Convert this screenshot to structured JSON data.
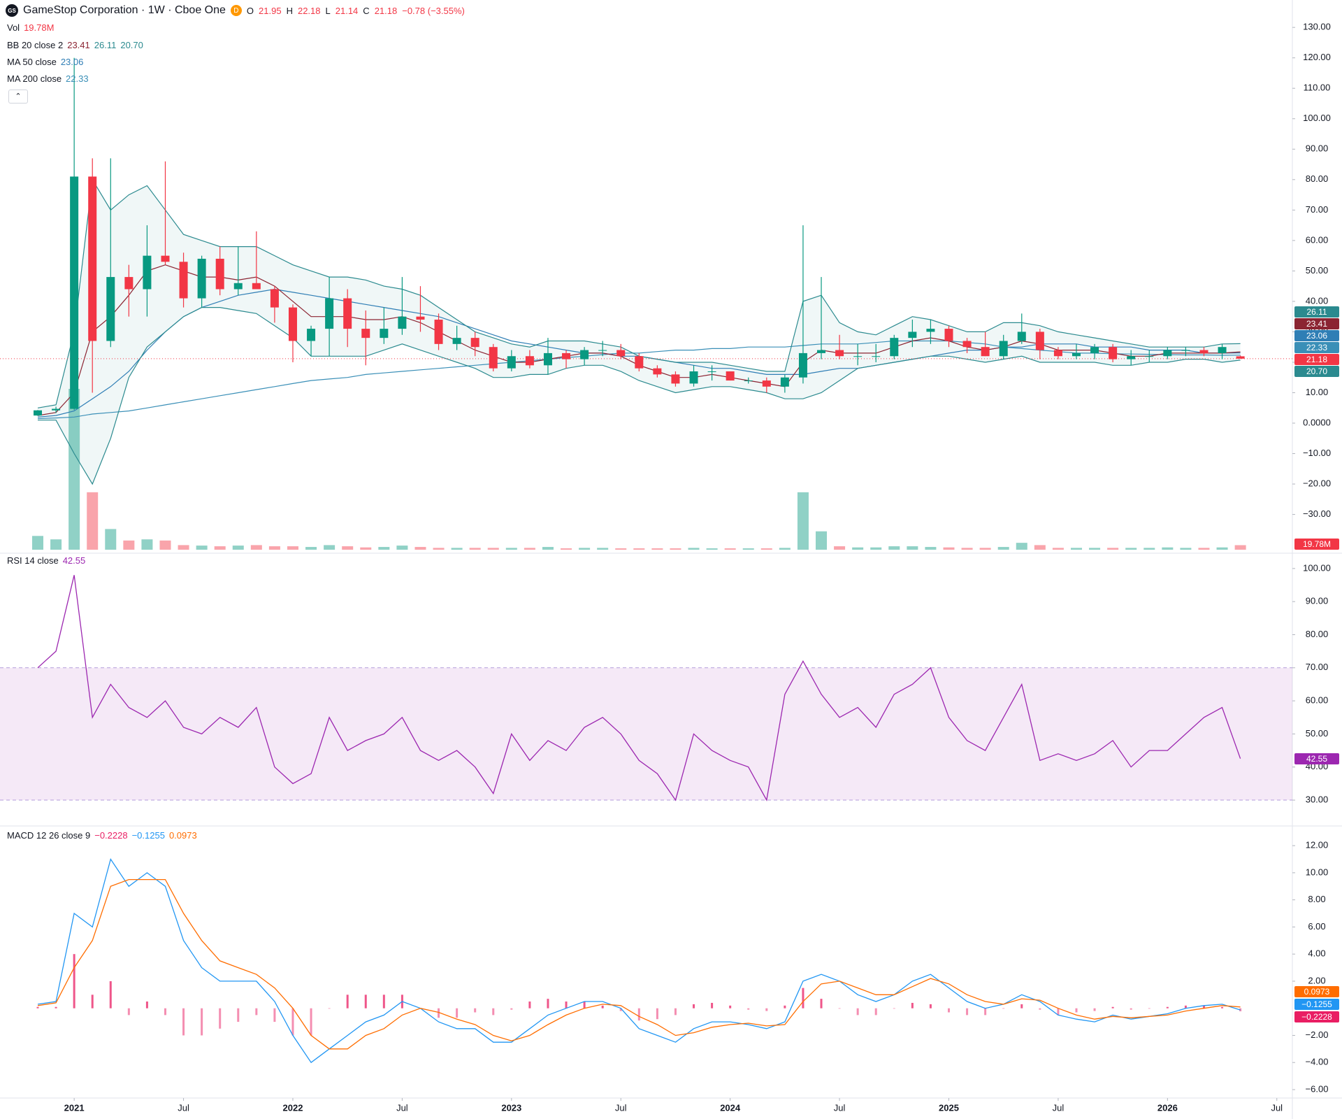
{
  "header": {
    "symbol_title": "GameStop Corporation · 1W · Cboe One",
    "flag": "D",
    "ohlc": [
      {
        "label": "O",
        "value": "21.95"
      },
      {
        "label": "H",
        "value": "22.18"
      },
      {
        "label": "L",
        "value": "21.14"
      },
      {
        "label": "C",
        "value": "21.18"
      }
    ],
    "change": "−0.78 (−3.55%)"
  },
  "legends": {
    "vol": {
      "label": "Vol",
      "value": "19.78M"
    },
    "bb": {
      "label": "BB 20 close 2",
      "values": [
        "23.41",
        "26.11",
        "20.70"
      ]
    },
    "ma50": {
      "label": "MA 50 close",
      "value": "23.06"
    },
    "ma200": {
      "label": "MA 200 close",
      "value": "22.33"
    },
    "rsi": {
      "label": "RSI 14 close",
      "value": "42.55"
    },
    "macd": {
      "label": "MACD 12 26 close 9",
      "values": [
        "−0.2228",
        "−0.1255",
        "0.0973"
      ]
    }
  },
  "chart_data": [
    {
      "type": "candlestick",
      "x": [
        "2020-11",
        "2020-12",
        "2021-01",
        "2021-02",
        "2021-03",
        "2021-04",
        "2021-05",
        "2021-06",
        "2021-07",
        "2021-08",
        "2021-09",
        "2021-10",
        "2021-11",
        "2021-12",
        "2022-01",
        "2022-02",
        "2022-03",
        "2022-04",
        "2022-05",
        "2022-06",
        "2022-07",
        "2022-08",
        "2022-09",
        "2022-10",
        "2022-11",
        "2022-12",
        "2023-01",
        "2023-02",
        "2023-03",
        "2023-04",
        "2023-05",
        "2023-06",
        "2023-07",
        "2023-08",
        "2023-09",
        "2023-10",
        "2023-11",
        "2023-12",
        "2024-01",
        "2024-02",
        "2024-03",
        "2024-04",
        "2024-05",
        "2024-06",
        "2024-07",
        "2024-08",
        "2024-09",
        "2024-10",
        "2024-11",
        "2024-12",
        "2025-01",
        "2025-02",
        "2025-03",
        "2025-04",
        "2025-05",
        "2025-06",
        "2025-07",
        "2025-08",
        "2025-09",
        "2025-10",
        "2025-11",
        "2025-12",
        "2026-01",
        "2026-02",
        "2026-03",
        "2026-04",
        "2026-05"
      ],
      "open": [
        2.5,
        4.2,
        4.7,
        81,
        27,
        48,
        44,
        55,
        53,
        41,
        54,
        44,
        46,
        44,
        38,
        27,
        31,
        41,
        31,
        28,
        31,
        35,
        34,
        26,
        28,
        25,
        18,
        22,
        19,
        23,
        21,
        24,
        24,
        22,
        18,
        16,
        13,
        17,
        17,
        14,
        14,
        12,
        15,
        23,
        24,
        22,
        22,
        22,
        28,
        30,
        31,
        27,
        25,
        22,
        27,
        30,
        24,
        22,
        23,
        25,
        21,
        22,
        22,
        24,
        24,
        23,
        21.95
      ],
      "high": [
        4.3,
        5.4,
        120,
        87,
        87,
        52,
        65,
        86,
        56,
        55,
        58,
        58,
        63,
        45,
        39,
        32,
        48,
        44,
        37,
        38,
        48,
        45,
        36,
        32,
        30,
        26,
        24,
        24,
        28,
        24,
        25,
        27,
        26,
        23,
        19,
        17,
        19,
        19,
        17,
        15,
        15,
        16,
        65,
        48,
        29,
        26,
        26,
        29,
        34,
        34,
        32,
        28,
        30,
        29,
        36,
        31,
        25,
        26,
        26,
        26,
        24,
        24,
        25,
        25,
        25,
        26,
        22.18
      ],
      "low": [
        2.4,
        3.3,
        4.3,
        10,
        25,
        35,
        35,
        52,
        38,
        38,
        42,
        42,
        45,
        33,
        20,
        22,
        22,
        25,
        19,
        26,
        29,
        30,
        24,
        24,
        22,
        17,
        17,
        18,
        16,
        18,
        19,
        22,
        21,
        17,
        15,
        12,
        12,
        14,
        14,
        13,
        10,
        10,
        13,
        21,
        21,
        19,
        20,
        21,
        25,
        26,
        25,
        23,
        22,
        21,
        26,
        21,
        21,
        21,
        21,
        20,
        19,
        20,
        21,
        22,
        22,
        21,
        21.14
      ],
      "close": [
        4.2,
        4.7,
        81,
        27,
        48,
        44,
        55,
        53,
        41,
        54,
        44,
        46,
        44,
        38,
        27,
        31,
        41,
        31,
        28,
        31,
        35,
        34,
        26,
        28,
        25,
        18,
        22,
        19,
        23,
        21,
        24,
        24,
        22,
        18,
        16,
        13,
        17,
        17,
        14,
        14,
        12,
        15,
        23,
        24,
        22,
        22,
        22,
        28,
        30,
        31,
        27,
        25,
        22,
        27,
        30,
        24,
        22,
        23,
        25,
        21,
        22,
        22,
        24,
        24,
        23,
        25,
        21.18
      ],
      "up_color": "#089981",
      "down_color": "#f23645",
      "volume": [
        60,
        45,
        700,
        250,
        90,
        40,
        45,
        40,
        20,
        18,
        15,
        18,
        20,
        15,
        15,
        12,
        20,
        15,
        10,
        12,
        18,
        12,
        8,
        8,
        8,
        8,
        8,
        8,
        12,
        6,
        8,
        8,
        6,
        6,
        6,
        6,
        8,
        6,
        6,
        6,
        6,
        8,
        250,
        80,
        15,
        10,
        10,
        15,
        15,
        12,
        10,
        8,
        8,
        12,
        30,
        20,
        8,
        8,
        8,
        8,
        8,
        8,
        10,
        8,
        8,
        10,
        19.78
      ],
      "bollinger": {
        "line_color": "#2b8a8f",
        "basis_color": "#8b2432",
        "fill": "#2b8a8f",
        "upper": [
          5,
          6,
          30,
          80,
          70,
          75,
          78,
          70,
          62,
          60,
          58,
          58,
          58,
          55,
          52,
          50,
          48,
          48,
          47,
          45,
          44,
          42,
          38,
          34,
          30,
          28,
          26,
          25,
          27,
          27,
          27,
          26,
          25,
          22,
          21,
          20,
          20,
          20,
          19,
          18,
          17,
          17,
          40,
          42,
          33,
          30,
          29,
          32,
          35,
          34,
          32,
          30,
          30,
          33,
          33,
          32,
          30,
          29,
          28,
          27,
          26,
          25,
          25,
          25,
          25,
          26,
          26.11
        ],
        "basis": [
          2.5,
          3.5,
          10,
          30,
          35,
          42,
          50,
          52,
          50,
          48,
          48,
          47,
          48,
          45,
          40,
          35,
          35,
          35,
          34,
          34,
          35,
          33,
          30,
          27,
          24,
          22,
          20,
          20,
          21,
          22,
          23,
          23,
          22,
          19,
          17,
          15,
          15,
          16,
          15,
          14,
          13,
          12,
          20,
          24,
          23,
          23,
          23,
          25,
          27,
          28,
          27,
          25,
          24,
          25,
          27,
          26,
          24,
          24,
          24,
          23,
          22,
          22,
          23,
          23,
          23,
          23,
          23.41
        ],
        "lower": [
          1,
          1,
          -10,
          -20,
          -5,
          15,
          25,
          30,
          35,
          38,
          38,
          37,
          36,
          32,
          28,
          22,
          22,
          22,
          22,
          24,
          26,
          24,
          22,
          20,
          18,
          15,
          15,
          16,
          16,
          18,
          19,
          19,
          17,
          14,
          12,
          10,
          11,
          12,
          12,
          11,
          10,
          8,
          8,
          10,
          14,
          18,
          19,
          20,
          21,
          22,
          22,
          21,
          20,
          21,
          22,
          20,
          20,
          20,
          20,
          19,
          19,
          20,
          20,
          21,
          21,
          20,
          20.7
        ]
      },
      "ma50": {
        "color": "#2f7eb5",
        "values": [
          2,
          2.5,
          4,
          8,
          12,
          17,
          24,
          30,
          35,
          38,
          40,
          42,
          43,
          44,
          43,
          42,
          41,
          40,
          39,
          38,
          37,
          36,
          35,
          33,
          31,
          29,
          27,
          26,
          25,
          24,
          23,
          23,
          22,
          22,
          21,
          20,
          19,
          18,
          18,
          17,
          16,
          16,
          16,
          17,
          18,
          18,
          19,
          20,
          21,
          22,
          23,
          24,
          24,
          25,
          25,
          26,
          26,
          26,
          25,
          25,
          25,
          24,
          24,
          24,
          23,
          23,
          23.06
        ]
      },
      "ma200": {
        "color": "#3a8fb7",
        "values": [
          1.5,
          1.7,
          2,
          3,
          3.5,
          4,
          5,
          6,
          7,
          8,
          9,
          10,
          11,
          12,
          13,
          14,
          14.5,
          15,
          16,
          16.5,
          17,
          17.5,
          18,
          18.5,
          19,
          19.5,
          20,
          20.5,
          21,
          21.5,
          22,
          22.5,
          23,
          23,
          23.5,
          24,
          24,
          24.5,
          24.5,
          25,
          25,
          25,
          25.5,
          26,
          26,
          26,
          26.5,
          27,
          27,
          27,
          27,
          26.5,
          26,
          25,
          24.5,
          24,
          23.5,
          23,
          23,
          22.8,
          22.7,
          22.6,
          22.5,
          22.4,
          22.4,
          22.3,
          22.33
        ]
      },
      "ylim": [
        -42.5,
        139
      ],
      "yticks": [
        {
          "value": 130,
          "label": "130.00"
        },
        {
          "value": 120,
          "label": "120.00"
        },
        {
          "value": 110,
          "label": "110.00"
        },
        {
          "value": 100,
          "label": "100.00"
        },
        {
          "value": 90,
          "label": "90.00"
        },
        {
          "value": 80,
          "label": "80.00"
        },
        {
          "value": 70,
          "label": "70.00"
        },
        {
          "value": 60,
          "label": "60.00"
        },
        {
          "value": 50,
          "label": "50.00"
        },
        {
          "value": 40,
          "label": "40.00"
        },
        {
          "value": 30,
          "label": "30.00"
        },
        {
          "value": 20,
          "label": "20.00"
        },
        {
          "value": 10,
          "label": "10.00"
        },
        {
          "value": 0,
          "label": "0.0000"
        },
        {
          "value": -10,
          "label": "−10.00"
        },
        {
          "value": -20,
          "label": "−20.00"
        },
        {
          "value": -30,
          "label": "−30.00"
        }
      ],
      "xticks": [
        {
          "value": "2021-01",
          "label": "2021"
        },
        {
          "value": "2021-07",
          "label": "Jul"
        },
        {
          "value": "2022-01",
          "label": "2022"
        },
        {
          "value": "2022-07",
          "label": "Jul"
        },
        {
          "value": "2023-01",
          "label": "2023"
        },
        {
          "value": "2023-07",
          "label": "Jul"
        },
        {
          "value": "2024-01",
          "label": "2024"
        },
        {
          "value": "2024-07",
          "label": "Jul"
        },
        {
          "value": "2025-01",
          "label": "2025"
        },
        {
          "value": "2025-07",
          "label": "Jul"
        },
        {
          "value": "2026-01",
          "label": "2026"
        },
        {
          "value": "2026-07",
          "label": "Jul"
        }
      ]
    },
    {
      "type": "line",
      "color": "#9c27b0",
      "band": [
        30,
        70
      ],
      "band_color": "#9c27b0",
      "values": [
        70,
        75,
        98,
        55,
        65,
        58,
        55,
        60,
        52,
        50,
        55,
        52,
        58,
        40,
        35,
        38,
        55,
        45,
        48,
        50,
        55,
        45,
        42,
        45,
        40,
        32,
        50,
        42,
        48,
        45,
        52,
        55,
        50,
        42,
        38,
        30,
        50,
        45,
        42,
        40,
        30,
        62,
        72,
        62,
        55,
        58,
        52,
        62,
        65,
        70,
        55,
        48,
        45,
        55,
        65,
        42,
        44,
        42,
        44,
        48,
        40,
        45,
        45,
        50,
        55,
        58,
        42.55
      ],
      "ylim": [
        22.4,
        104.2
      ],
      "yticks": [
        {
          "value": 100,
          "label": "100.00"
        },
        {
          "value": 90,
          "label": "90.00"
        },
        {
          "value": 80,
          "label": "80.00"
        },
        {
          "value": 70,
          "label": "70.00"
        },
        {
          "value": 60,
          "label": "60.00"
        },
        {
          "value": 50,
          "label": "50.00"
        },
        {
          "value": 40,
          "label": "40.00"
        },
        {
          "value": 30,
          "label": "30.00"
        }
      ]
    },
    {
      "type": "macd",
      "macd": {
        "color": "#2196f3",
        "values": [
          0.3,
          0.5,
          7,
          6,
          11,
          9,
          10,
          9,
          5,
          3,
          2,
          2,
          2,
          0.5,
          -2,
          -4,
          -3,
          -2,
          -1,
          -0.5,
          0.5,
          0,
          -1,
          -1.5,
          -1.5,
          -2.5,
          -2.5,
          -1.5,
          -0.5,
          0,
          0.5,
          0.5,
          0,
          -1.5,
          -2,
          -2.5,
          -1.5,
          -1,
          -1,
          -1.2,
          -1.5,
          -1,
          2,
          2.5,
          2,
          1,
          0.5,
          1,
          2,
          2.5,
          1.5,
          0.5,
          0,
          0.3,
          1,
          0.5,
          -0.5,
          -0.8,
          -1,
          -0.5,
          -0.8,
          -0.6,
          -0.4,
          0,
          0.2,
          0.3,
          -0.1255
        ]
      },
      "signal": {
        "color": "#ff6d00",
        "values": [
          0.2,
          0.4,
          3,
          5,
          9,
          9.5,
          9.5,
          9.5,
          7,
          5,
          3.5,
          3,
          2.5,
          1.5,
          0,
          -2,
          -3,
          -3,
          -2,
          -1.5,
          -0.5,
          0,
          -0.3,
          -0.8,
          -1.2,
          -2,
          -2.4,
          -2,
          -1.2,
          -0.5,
          0,
          0.3,
          0.2,
          -0.6,
          -1.2,
          -2,
          -1.8,
          -1.4,
          -1.2,
          -1.1,
          -1.3,
          -1.2,
          0.5,
          1.8,
          2,
          1.5,
          1,
          1,
          1.6,
          2.2,
          1.8,
          1,
          0.5,
          0.3,
          0.7,
          0.6,
          0,
          -0.5,
          -0.8,
          -0.6,
          -0.7,
          -0.6,
          -0.5,
          -0.2,
          0,
          0.2,
          0.0973
        ]
      },
      "histogram": {
        "color": "#e91e63",
        "values": [
          0.1,
          0.1,
          4,
          1,
          2,
          -0.5,
          0.5,
          -0.5,
          -2,
          -2,
          -1.5,
          -1,
          -0.5,
          -1,
          -2,
          -2,
          0,
          1,
          1,
          1,
          1,
          0,
          -0.7,
          -0.7,
          -0.3,
          -0.5,
          -0.1,
          0.5,
          0.7,
          0.5,
          0.5,
          0.2,
          -0.2,
          -0.9,
          -0.8,
          -0.5,
          0.3,
          0.4,
          0.2,
          -0.1,
          -0.2,
          0.2,
          1.5,
          0.7,
          0,
          -0.5,
          -0.5,
          0,
          0.4,
          0.3,
          -0.3,
          -0.5,
          -0.5,
          0,
          0.3,
          -0.1,
          -0.5,
          -0.3,
          -0.2,
          0.1,
          -0.1,
          0,
          0.1,
          0.2,
          0.2,
          0.1,
          -0.2228
        ]
      },
      "ylim": [
        -6.62,
        13.4
      ],
      "yticks": [
        {
          "value": 12,
          "label": "12.00"
        },
        {
          "value": 10,
          "label": "10.00"
        },
        {
          "value": 8,
          "label": "8.00"
        },
        {
          "value": 6,
          "label": "6.00"
        },
        {
          "value": 4,
          "label": "4.00"
        },
        {
          "value": 2,
          "label": "2.00"
        },
        {
          "value": -2,
          "label": "−2.00"
        },
        {
          "value": -4,
          "label": "−4.00"
        },
        {
          "value": -6,
          "label": "−6.00"
        }
      ]
    }
  ]
}
